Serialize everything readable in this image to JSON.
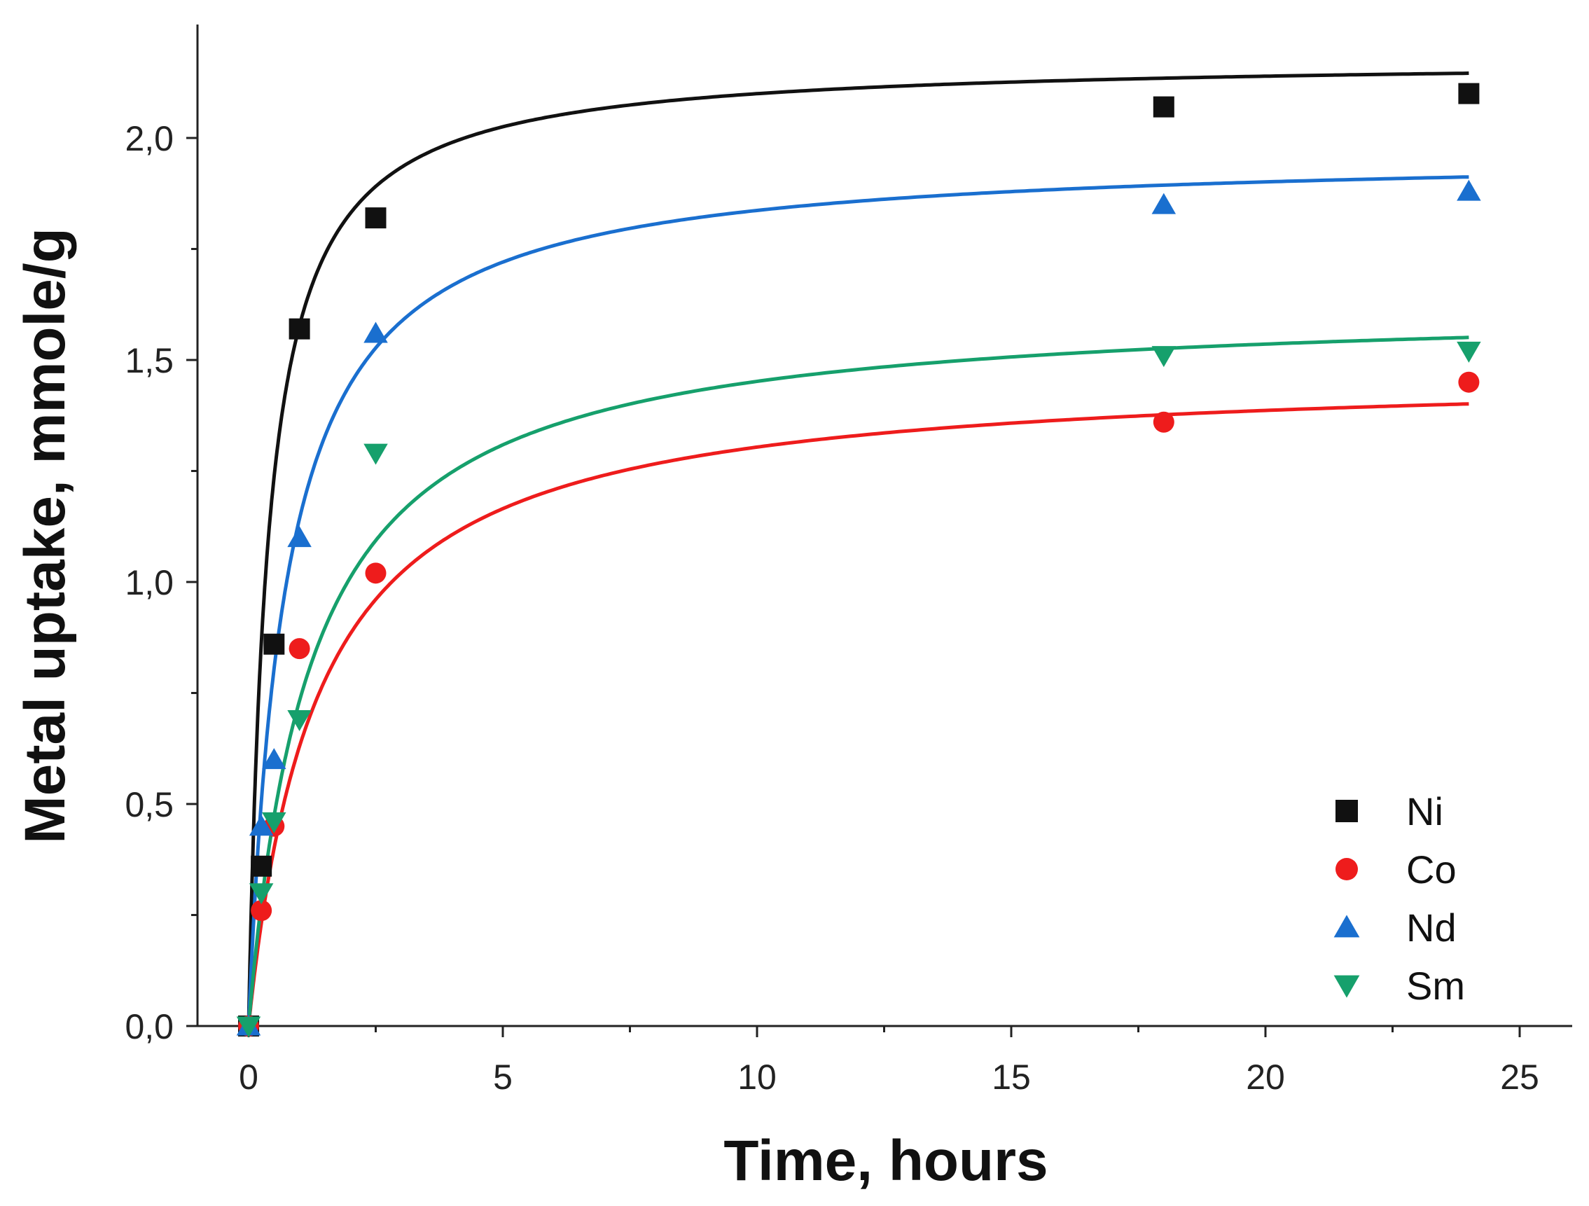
{
  "chart_data": {
    "type": "scatter",
    "xlabel": "Time, hours",
    "ylabel": "Metal uptake, mmole/g",
    "xlim": [
      -1.0,
      26.0
    ],
    "ylim": [
      0.0,
      2.25
    ],
    "xticks": [
      0,
      5,
      10,
      15,
      20,
      25
    ],
    "xtick_labels": [
      "0",
      "5",
      "10",
      "15",
      "20",
      "25"
    ],
    "yticks": [
      0.0,
      0.5,
      1.0,
      1.5,
      2.0
    ],
    "ytick_labels": [
      "0,0",
      "0,5",
      "1,0",
      "1,5",
      "2,0"
    ],
    "grid": false,
    "legend_position": "bottom-right",
    "series": [
      {
        "name": "Ni",
        "marker": "square",
        "color": "#111111",
        "x": [
          0,
          0.25,
          0.5,
          1,
          2.5,
          18,
          24
        ],
        "y": [
          0.0,
          0.36,
          0.86,
          1.57,
          1.82,
          2.07,
          2.1
        ],
        "fit": {
          "qmax": 2.18,
          "k": 1.2
        }
      },
      {
        "name": "Co",
        "marker": "circle",
        "color": "#ee1c1c",
        "x": [
          0,
          0.25,
          0.5,
          1,
          2.5,
          18,
          24
        ],
        "y": [
          0.0,
          0.26,
          0.45,
          0.85,
          1.02,
          1.36,
          1.45
        ],
        "fit": {
          "qmax": 1.48,
          "k": 0.5
        }
      },
      {
        "name": "Nd",
        "marker": "triangle-up",
        "color": "#1a6fcf",
        "x": [
          0,
          0.25,
          0.5,
          1,
          2.5,
          18,
          24
        ],
        "y": [
          0.0,
          0.45,
          0.6,
          1.1,
          1.56,
          1.85,
          1.88
        ],
        "fit": {
          "qmax": 1.97,
          "k": 0.7
        }
      },
      {
        "name": "Sm",
        "marker": "triangle-down",
        "color": "#16a06c",
        "x": [
          0,
          0.25,
          0.5,
          1,
          2.5,
          18,
          24
        ],
        "y": [
          0.0,
          0.3,
          0.46,
          0.69,
          1.29,
          1.51,
          1.52
        ],
        "fit": {
          "qmax": 1.63,
          "k": 0.5
        }
      }
    ]
  }
}
